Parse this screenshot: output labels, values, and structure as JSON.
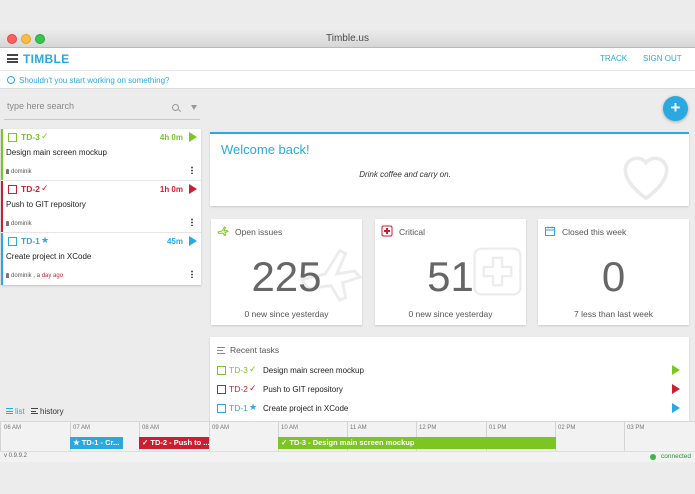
{
  "window": {
    "title": "Timble.us"
  },
  "app": {
    "brand": "TIMBLE",
    "nav": {
      "track": "TRACK",
      "sign_out": "SIGN OUT"
    }
  },
  "hint": {
    "text": "Shouldn't you start working on something?"
  },
  "search": {
    "placeholder": "type here search"
  },
  "colors": {
    "accent": "#29a9e0",
    "green": "#7cc623",
    "red": "#cc1e2f",
    "blue": "#29a9e0"
  },
  "tasks": [
    {
      "id": "TD-3",
      "status_icon": "check-icon",
      "status_glyph": "✓",
      "time": "4h 0m",
      "title": "Design main screen mockup",
      "user": "dominik",
      "ago": "",
      "color": "#7cc623"
    },
    {
      "id": "TD-2",
      "status_icon": "check-icon",
      "status_glyph": "✓",
      "time": "1h 0m",
      "title": "Push to GIT repository",
      "user": "dominik",
      "ago": "",
      "color": "#cc1e2f"
    },
    {
      "id": "TD-1",
      "status_icon": "star-icon",
      "status_glyph": "★",
      "time": "45m",
      "title": "Create project in XCode",
      "user": "dominik",
      "ago": "a day ago",
      "color": "#29a9e0"
    }
  ],
  "view_toggle": {
    "list": "list",
    "history": "history"
  },
  "fab": {
    "label": "+"
  },
  "welcome": {
    "title": "Welcome back!",
    "subtitle": "Drink coffee and carry on."
  },
  "stats": {
    "open": {
      "label": "Open issues",
      "value": "225",
      "sub": "0 new since yesterday"
    },
    "critical": {
      "label": "Critical",
      "value": "51",
      "sub": "0 new since yesterday"
    },
    "closed": {
      "label": "Closed this week",
      "value": "0",
      "sub": "7 less than last week"
    }
  },
  "recent": {
    "title": "Recent tasks",
    "rows": [
      {
        "id": "TD-3",
        "status_glyph": "✓",
        "title": "Design main screen mockup",
        "color": "#7cc623"
      },
      {
        "id": "TD-2",
        "status_glyph": "✓",
        "title": "Push to GIT repository",
        "color": "#cc1e2f"
      },
      {
        "id": "TD-1",
        "status_glyph": "★",
        "title": "Create project in XCode",
        "color": "#29a9e0"
      }
    ]
  },
  "timeline": {
    "hours": [
      "06 AM",
      "07 AM",
      "08 AM",
      "09 AM",
      "10 AM",
      "11 AM",
      "12 PM",
      "01 PM",
      "02 PM",
      "03 PM"
    ],
    "bars": [
      {
        "label": "★ TD-1 - Cr...",
        "color": "#29a9e0"
      },
      {
        "label": "✓ TD-2 - Push to ...",
        "color": "#cc1e2f"
      },
      {
        "label": "✓ TD-3 - Design main screen mockup",
        "color": "#7cc623"
      }
    ]
  },
  "footer": {
    "version": "v 0.9.9.2",
    "connection": "connected"
  }
}
